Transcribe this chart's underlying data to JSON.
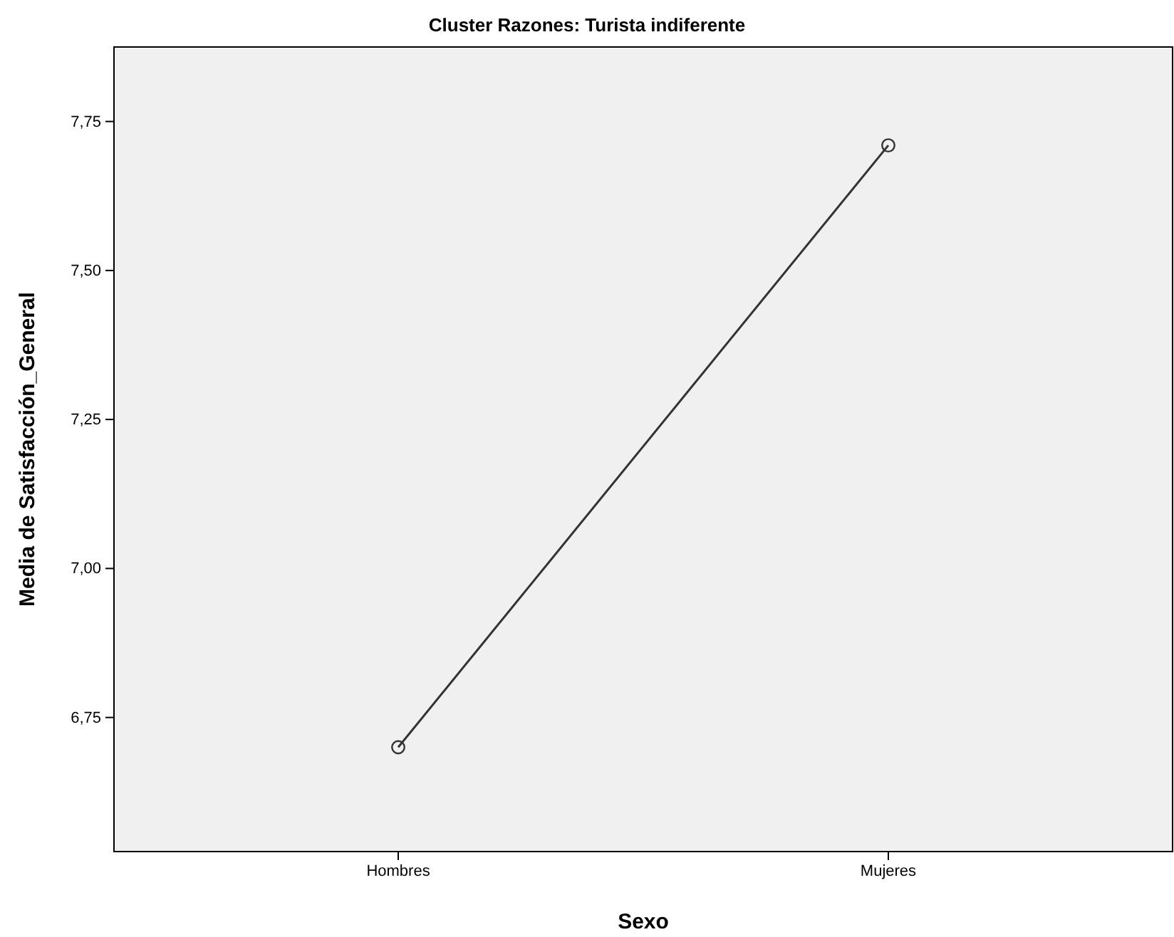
{
  "chart_data": {
    "type": "line",
    "title": "Cluster Razones: Turista indiferente",
    "xlabel": "Sexo",
    "ylabel": "Media de Satisfacción_General",
    "categories": [
      "Hombres",
      "Mujeres"
    ],
    "series": [
      {
        "color": "#333333",
        "values": [
          6.7,
          7.71
        ]
      }
    ],
    "ylim": [
      6.525,
      7.875
    ],
    "yticks": [
      {
        "value": 6.75,
        "label": "6,75"
      },
      {
        "value": 7.0,
        "label": "7,00"
      },
      {
        "value": 7.25,
        "label": "7,25"
      },
      {
        "value": 7.5,
        "label": "7,50"
      },
      {
        "value": 7.75,
        "label": "7,75"
      }
    ],
    "grid": false,
    "marker": "circle",
    "line_style": "solid"
  }
}
